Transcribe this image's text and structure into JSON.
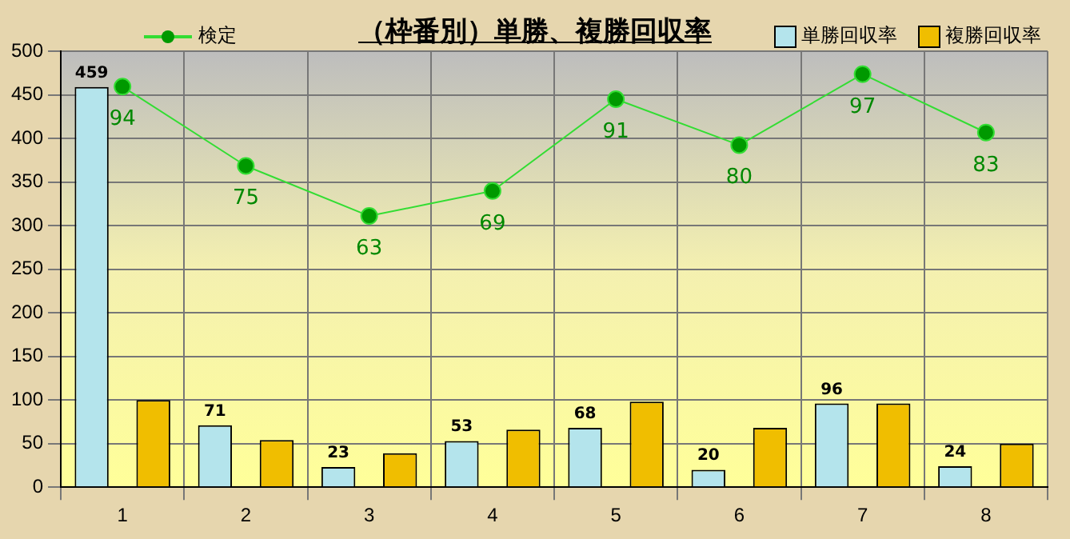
{
  "chart_data": {
    "type": "bar",
    "title": "（枠番別）単勝、複勝回収率",
    "categories": [
      "1",
      "2",
      "3",
      "4",
      "5",
      "6",
      "7",
      "8"
    ],
    "series": [
      {
        "name": "単勝回収率",
        "color": "#b4e4ec",
        "values": [
          459,
          71,
          23,
          53,
          68,
          20,
          96,
          24
        ],
        "value_labels": [
          "459",
          "71",
          "23",
          "53",
          "68",
          "20",
          "96",
          "24"
        ]
      },
      {
        "name": "複勝回収率",
        "color": "#f0be00",
        "values": [
          100,
          54,
          39,
          66,
          98,
          68,
          96,
          50
        ]
      },
      {
        "name": "検定",
        "type": "line",
        "axis": "y2",
        "color": "#33dd33",
        "marker": "circle",
        "values": [
          94,
          75,
          63,
          69,
          91,
          80,
          97,
          83
        ],
        "value_labels": [
          "94",
          "75",
          "63",
          "69",
          "91",
          "80",
          "97",
          "83"
        ]
      }
    ],
    "ylim": [
      0,
      500
    ],
    "yticks": [
      0,
      50,
      100,
      150,
      200,
      250,
      300,
      350,
      400,
      450,
      500
    ],
    "y2lim": [
      -2,
      102.5
    ],
    "tick_labels": "xy",
    "grid": true,
    "legend": "top"
  }
}
